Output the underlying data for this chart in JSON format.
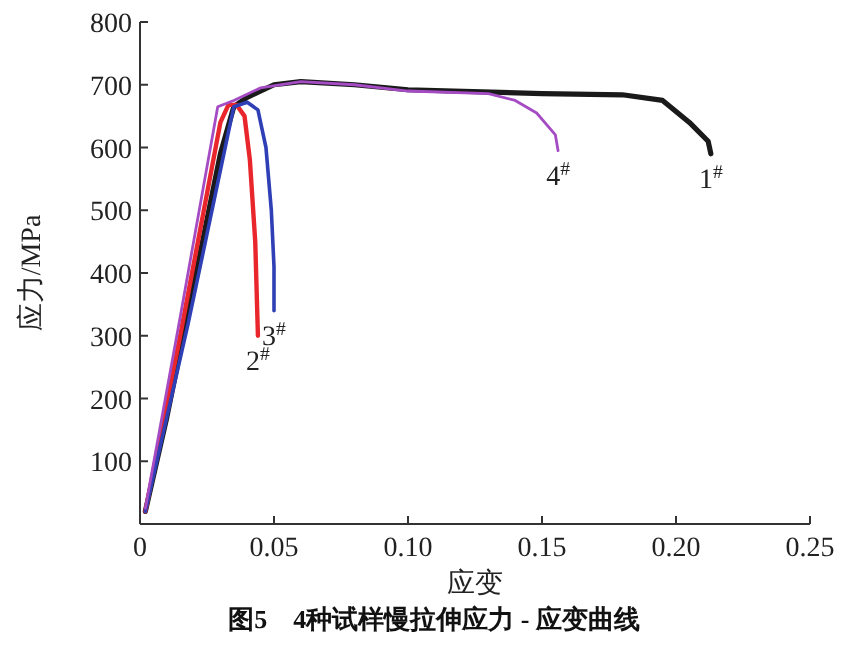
{
  "chart_data": {
    "type": "line",
    "title": "图5　4种试样慢拉伸应力 - 应变曲线",
    "xlabel": "应变",
    "ylabel": "应力/MPa",
    "xlim": [
      0,
      0.25
    ],
    "ylim": [
      0,
      800
    ],
    "xticks": [
      0,
      0.05,
      {
        "value": 0.1,
        "label": "0.10"
      },
      0.15,
      {
        "value": 0.2,
        "label": "0.20"
      },
      0.25
    ],
    "yticks": [
      100,
      200,
      300,
      400,
      500,
      600,
      700,
      800
    ],
    "grid": false,
    "series": [
      {
        "name": "1$^{#}$",
        "color": "#1a1a1a",
        "x": [
          0.002,
          0.01,
          0.02,
          0.03,
          0.035,
          0.04,
          0.05,
          0.06,
          0.08,
          0.1,
          0.15,
          0.18,
          0.195,
          0.205,
          0.212,
          0.213
        ],
        "values": [
          20,
          170,
          380,
          590,
          665,
          680,
          700,
          705,
          700,
          692,
          686,
          684,
          675,
          640,
          610,
          590
        ]
      },
      {
        "name": "2$^{#}$",
        "color": "#e8262b",
        "x": [
          0.002,
          0.015,
          0.03,
          0.033,
          0.036,
          0.039,
          0.041,
          0.043,
          0.044
        ],
        "values": [
          20,
          300,
          640,
          668,
          668,
          650,
          580,
          450,
          300
        ]
      },
      {
        "name": "3$^{#}$",
        "color": "#2f3fb5",
        "x": [
          0.002,
          0.018,
          0.035,
          0.04,
          0.044,
          0.047,
          0.049,
          0.05,
          0.05
        ],
        "values": [
          20,
          320,
          665,
          672,
          660,
          600,
          500,
          410,
          340
        ]
      },
      {
        "name": "4$^{#}$",
        "color": "#a54cc4",
        "x": [
          0.002,
          0.015,
          0.029,
          0.035,
          0.045,
          0.06,
          0.08,
          0.1,
          0.13,
          0.14,
          0.148,
          0.155,
          0.156
        ],
        "values": [
          25,
          330,
          665,
          675,
          695,
          705,
          700,
          690,
          686,
          675,
          655,
          620,
          595
        ]
      }
    ]
  }
}
